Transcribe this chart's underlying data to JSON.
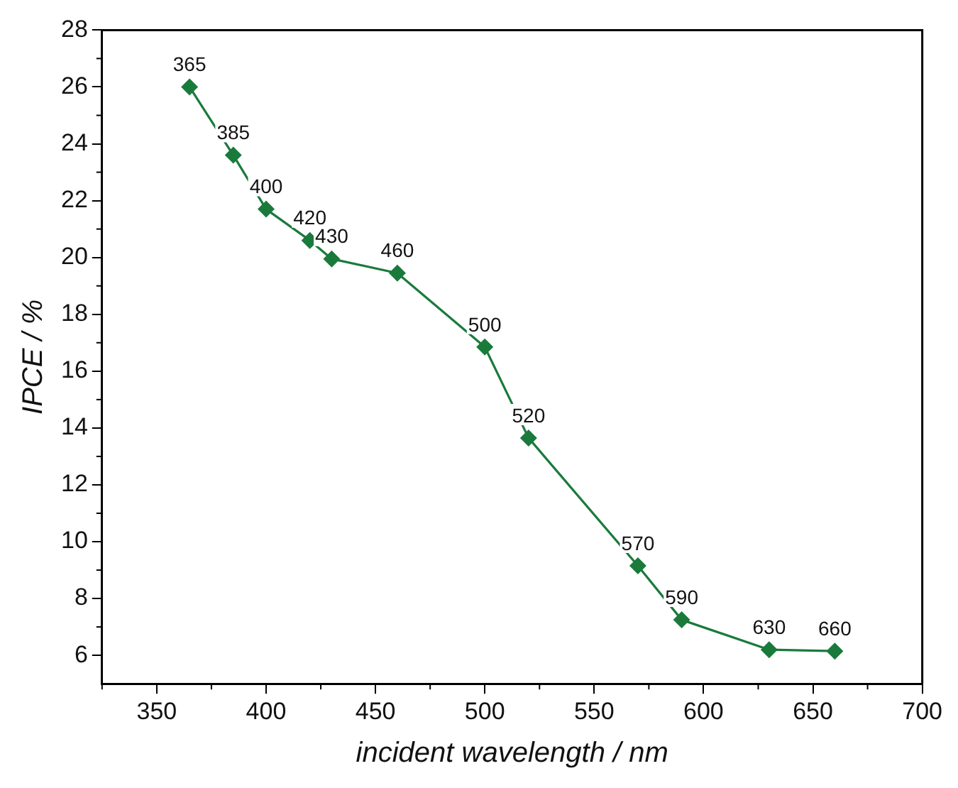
{
  "chart_data": {
    "type": "line",
    "xlabel": "incident wavelength / nm",
    "ylabel": "IPCE / %",
    "x": [
      365,
      385,
      400,
      420,
      430,
      460,
      500,
      520,
      570,
      590,
      630,
      660
    ],
    "series": [
      {
        "color": "#1a7a3c",
        "values": [
          26.0,
          23.6,
          21.7,
          20.6,
          19.95,
          19.45,
          16.85,
          13.65,
          9.15,
          7.25,
          6.2,
          6.15
        ]
      }
    ],
    "xlim": [
      325,
      700
    ],
    "xticks": [
      350,
      400,
      450,
      500,
      550,
      600,
      650,
      700
    ],
    "ylim": [
      5,
      28
    ],
    "yticks": [
      6,
      8,
      10,
      12,
      14,
      16,
      18,
      20,
      22,
      24,
      26,
      28
    ],
    "marker": "diamond",
    "line_style": "solid",
    "grid": false,
    "legend": false,
    "annotations": [
      {
        "text": "365",
        "x": 365,
        "y": 26.0
      },
      {
        "text": "385",
        "x": 385,
        "y": 23.6
      },
      {
        "text": "400",
        "x": 400,
        "y": 21.7
      },
      {
        "text": "420",
        "x": 420,
        "y": 20.6
      },
      {
        "text": "430",
        "x": 430,
        "y": 19.95
      },
      {
        "text": "460",
        "x": 460,
        "y": 19.45
      },
      {
        "text": "500",
        "x": 500,
        "y": 16.85
      },
      {
        "text": "520",
        "x": 520,
        "y": 13.65
      },
      {
        "text": "570",
        "x": 570,
        "y": 9.15
      },
      {
        "text": "590",
        "x": 590,
        "y": 7.25
      },
      {
        "text": "630",
        "x": 630,
        "y": 6.2
      },
      {
        "text": "660",
        "x": 660,
        "y": 6.15
      }
    ]
  }
}
